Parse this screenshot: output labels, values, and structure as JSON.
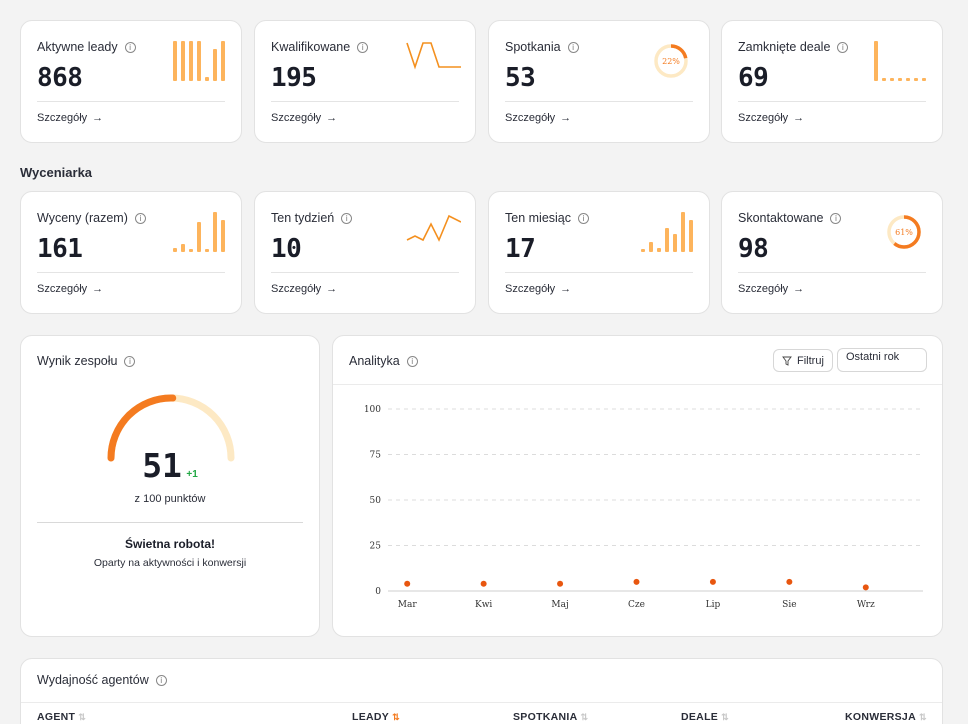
{
  "stats_top": [
    {
      "title": "Aktywne leady",
      "value": "868",
      "link": "Szczegóły"
    },
    {
      "title": "Kwalifikowane",
      "value": "195",
      "link": "Szczegóły"
    },
    {
      "title": "Spotkania",
      "value": "53",
      "link": "Szczegóły",
      "ring_label": "22%",
      "ring_percent": 22
    },
    {
      "title": "Zamknięte deale",
      "value": "69",
      "link": "Szczegóły"
    }
  ],
  "section": {
    "title": "Wyceniarka"
  },
  "stats_bottom": [
    {
      "title": "Wyceny (razem)",
      "value": "161",
      "link": "Szczegóły"
    },
    {
      "title": "Ten tydzień",
      "value": "10",
      "link": "Szczegóły"
    },
    {
      "title": "Ten miesiąc",
      "value": "17",
      "link": "Szczegóły"
    },
    {
      "title": "Skontaktowane",
      "value": "98",
      "link": "Szczegóły",
      "ring_label": "61%",
      "ring_percent": 61
    }
  ],
  "team": {
    "title": "Wynik zespołu",
    "score": "51",
    "delta": "+1",
    "subtitle": "z 100 punktów",
    "message": "Świetna robota!",
    "description": "Oparty na aktywności i konwersji",
    "score_fraction": 0.51
  },
  "analytics": {
    "title": "Analityka",
    "filter_label": "Filtruj",
    "range_value": "Ostatni rok"
  },
  "chart_data": {
    "type": "scatter",
    "categories": [
      "Mar",
      "Kwi",
      "Maj",
      "Cze",
      "Lip",
      "Sie",
      "Wrz"
    ],
    "values": [
      4,
      4,
      4,
      5,
      5,
      5,
      2
    ],
    "y_ticks": [
      "100",
      "75",
      "50",
      "25",
      "0"
    ],
    "ylim": [
      0,
      100
    ],
    "grid": true
  },
  "agents": {
    "title": "Wydajność agentów",
    "columns": [
      "AGENT",
      "LEADY",
      "SPOTKANIA",
      "DEALE",
      "KONWERSJA"
    ]
  },
  "colors": {
    "accent": "#f47b20",
    "accent_light": "#fdb45c",
    "accent_pale": "#fde9c4",
    "positive": "#22a845"
  }
}
